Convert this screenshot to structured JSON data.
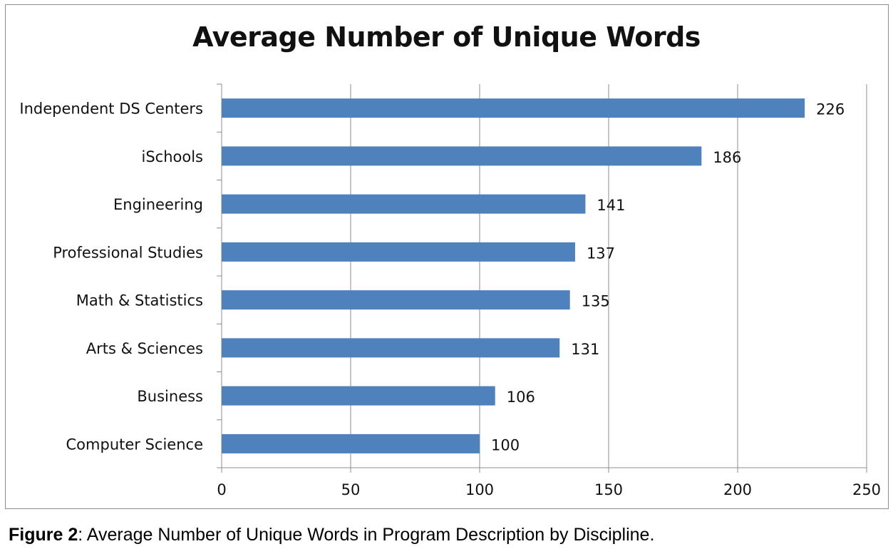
{
  "chart_data": {
    "type": "bar",
    "orientation": "horizontal",
    "title": "Average Number of Unique Words",
    "xlabel": "",
    "ylabel": "",
    "categories": [
      "Independent DS Centers",
      "iSchools",
      "Engineering",
      "Professional Studies",
      "Math & Statistics",
      "Arts & Sciences",
      "Business",
      "Computer Science"
    ],
    "values": [
      226,
      186,
      141,
      137,
      135,
      131,
      106,
      100
    ],
    "data_labels": [
      "226",
      "186",
      "141",
      "137",
      "135",
      "131",
      "106",
      "100"
    ],
    "xlim": [
      0,
      250
    ],
    "x_ticks": [
      0,
      50,
      100,
      150,
      200,
      250
    ],
    "x_tick_labels": [
      "0",
      "50",
      "100",
      "150",
      "200",
      "250"
    ],
    "grid": true,
    "legend": "none",
    "bar_color": "#4f81bd"
  },
  "caption": {
    "label": "Figure 2",
    "text": ": Average Number of Unique Words in Program Description by Discipline."
  }
}
